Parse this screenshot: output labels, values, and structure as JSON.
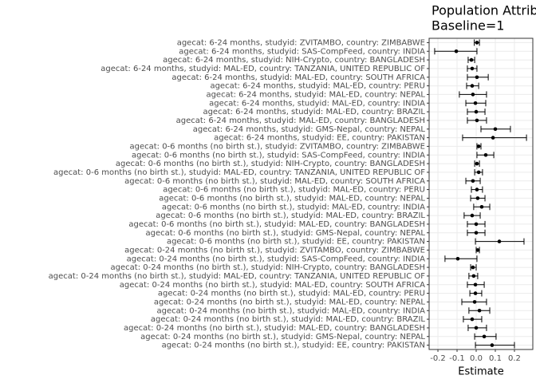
{
  "chart_data": {
    "type": "forest",
    "title": "Population Attrib",
    "subtitle": "Baseline=1",
    "x_label": "Estimate",
    "categories": [
      "agecat: 6-24 months, studyid: ZVITAMBO, country: ZIMBABWE",
      "agecat: 6-24 months, studyid: SAS-CompFeed, country: INDIA",
      "agecat: 6-24 months, studyid: NIH-Crypto, country: BANGLADESH",
      "agecat: 6-24 months, studyid: MAL-ED, country: TANZANIA, UNITED REPUBLIC OF",
      "agecat: 6-24 months, studyid: MAL-ED, country: SOUTH AFRICA",
      "agecat: 6-24 months, studyid: MAL-ED, country: PERU",
      "agecat: 6-24 months, studyid: MAL-ED, country: NEPAL",
      "agecat: 6-24 months, studyid: MAL-ED, country: INDIA",
      "agecat: 6-24 months, studyid: MAL-ED, country: BRAZIL",
      "agecat: 6-24 months, studyid: MAL-ED, country: BANGLADESH",
      "agecat: 6-24 months, studyid: GMS-Nepal, country: NEPAL",
      "agecat: 6-24 months, studyid: EE, country: PAKISTAN",
      "agecat: 0-6 months (no birth st.), studyid: ZVITAMBO, country: ZIMBABWE",
      "agecat: 0-6 months (no birth st.), studyid: SAS-CompFeed, country: INDIA",
      "agecat: 0-6 months (no birth st.), studyid: NIH-Crypto, country: BANGLADESH",
      "agecat: 0-6 months (no birth st.), studyid: MAL-ED, country: TANZANIA, UNITED REPUBLIC OF",
      "agecat: 0-6 months (no birth st.), studyid: MAL-ED, country: SOUTH AFRICA",
      "agecat: 0-6 months (no birth st.), studyid: MAL-ED, country: PERU",
      "agecat: 0-6 months (no birth st.), studyid: MAL-ED, country: NEPAL",
      "agecat: 0-6 months (no birth st.), studyid: MAL-ED, country: INDIA",
      "agecat: 0-6 months (no birth st.), studyid: MAL-ED, country: BRAZIL",
      "agecat: 0-6 months (no birth st.), studyid: MAL-ED, country: BANGLADESH",
      "agecat: 0-6 months (no birth st.), studyid: GMS-Nepal, country: NEPAL",
      "agecat: 0-6 months (no birth st.), studyid: EE, country: PAKISTAN",
      "agecat: 0-24 months (no birth st.), studyid: ZVITAMBO, country: ZIMBABWE",
      "agecat: 0-24 months (no birth st.), studyid: SAS-CompFeed, country: INDIA",
      "agecat: 0-24 months (no birth st.), studyid: NIH-Crypto, country: BANGLADESH",
      "agecat: 0-24 months (no birth st.), studyid: MAL-ED, country: TANZANIA, UNITED REPUBLIC OF",
      "agecat: 0-24 months (no birth st.), studyid: MAL-ED, country: SOUTH AFRICA",
      "agecat: 0-24 months (no birth st.), studyid: MAL-ED, country: PERU",
      "agecat: 0-24 months (no birth st.), studyid: MAL-ED, country: NEPAL",
      "agecat: 0-24 months (no birth st.), studyid: MAL-ED, country: INDIA",
      "agecat: 0-24 months (no birth st.), studyid: MAL-ED, country: BRAZIL",
      "agecat: 0-24 months (no birth st.), studyid: MAL-ED, country: BANGLADESH",
      "agecat: 0-24 months (no birth st.), studyid: GMS-Nepal, country: NEPAL",
      "agecat: 0-24 months (no birth st.), studyid: EE, country: PAKISTAN"
    ],
    "values": [
      0.004,
      -0.104,
      -0.025,
      -0.021,
      0.004,
      -0.021,
      -0.017,
      -0.004,
      0,
      0.004,
      0.1,
      0.088,
      0.013,
      0.05,
      0.004,
      0.013,
      -0.017,
      0.004,
      0.008,
      0.029,
      -0.021,
      0,
      0,
      0.121,
      0.008,
      -0.096,
      -0.017,
      -0.013,
      -0.004,
      -0.004,
      -0.008,
      0.017,
      -0.021,
      0,
      0.042,
      0.083
    ],
    "lower": [
      -0.01,
      -0.217,
      -0.042,
      -0.046,
      -0.046,
      -0.05,
      -0.088,
      -0.054,
      -0.046,
      -0.046,
      0.025,
      -0.071,
      0.004,
      0.004,
      -0.008,
      -0.008,
      -0.054,
      -0.025,
      -0.029,
      -0.013,
      -0.063,
      -0.046,
      -0.046,
      -0.004,
      0,
      -0.163,
      -0.029,
      -0.038,
      -0.046,
      -0.033,
      -0.075,
      -0.038,
      -0.067,
      -0.042,
      -0.008,
      -0.004
    ],
    "upper": [
      0.017,
      0.004,
      -0.008,
      0.004,
      0.063,
      0.013,
      0.054,
      0.05,
      0.046,
      0.054,
      0.179,
      0.263,
      0.025,
      0.092,
      0.017,
      0.033,
      0.021,
      0.033,
      0.046,
      0.071,
      0.021,
      0.046,
      0.046,
      0.25,
      0.017,
      0.004,
      0,
      0.008,
      0.042,
      0.029,
      0.054,
      0.071,
      0.029,
      0.054,
      0.104,
      0.2
    ],
    "color": "#000000",
    "xlim": [
      -0.246,
      0.296
    ],
    "xticks": [
      -0.2,
      -0.1,
      {
        "value": 0,
        "label": "0.0"
      },
      0.1,
      0.2
    ],
    "grid": true
  }
}
